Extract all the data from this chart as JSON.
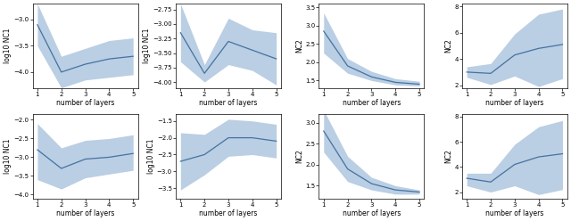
{
  "x": [
    1,
    2,
    3,
    4,
    5
  ],
  "plots": [
    {
      "mean": [
        -3.1,
        -4.0,
        -3.85,
        -3.75,
        -3.7
      ],
      "lower": [
        -3.5,
        -4.3,
        -4.15,
        -4.1,
        -4.05
      ],
      "upper": [
        -2.7,
        -3.7,
        -3.55,
        -3.4,
        -3.35
      ],
      "ylabel": "log10 NC1",
      "ylim": [
        -4.3,
        -2.7
      ]
    },
    {
      "mean": [
        -3.15,
        -3.85,
        -3.3,
        -3.45,
        -3.6
      ],
      "lower": [
        -3.65,
        -4.0,
        -3.7,
        -3.8,
        -4.05
      ],
      "upper": [
        -2.65,
        -3.7,
        -2.9,
        -3.1,
        -3.15
      ],
      "ylabel": "log10 NC1",
      "ylim": [
        -4.1,
        -2.65
      ]
    },
    {
      "mean": [
        2.85,
        1.9,
        1.6,
        1.45,
        1.4
      ],
      "lower": [
        2.25,
        1.7,
        1.5,
        1.38,
        1.35
      ],
      "upper": [
        3.35,
        2.1,
        1.75,
        1.55,
        1.48
      ],
      "ylabel": "NC2",
      "ylim": [
        1.3,
        3.6
      ]
    },
    {
      "mean": [
        3.0,
        2.9,
        4.3,
        4.8,
        5.1
      ],
      "lower": [
        2.6,
        2.05,
        2.7,
        1.9,
        2.5
      ],
      "upper": [
        3.4,
        3.65,
        5.9,
        7.4,
        7.8
      ],
      "ylabel": "NC2",
      "ylim": [
        1.8,
        8.2
      ]
    },
    {
      "mean": [
        -2.8,
        -3.3,
        -3.05,
        -3.0,
        -2.9
      ],
      "lower": [
        -3.6,
        -3.85,
        -3.55,
        -3.45,
        -3.35
      ],
      "upper": [
        -2.1,
        -2.75,
        -2.55,
        -2.5,
        -2.4
      ],
      "ylabel": "log10 NC1",
      "ylim": [
        -4.1,
        -1.85
      ]
    },
    {
      "mean": [
        -2.7,
        -2.5,
        -2.0,
        -2.0,
        -2.1
      ],
      "lower": [
        -3.55,
        -3.1,
        -2.55,
        -2.5,
        -2.6
      ],
      "upper": [
        -1.85,
        -1.9,
        -1.45,
        -1.5,
        -1.6
      ],
      "ylabel": "log10 NC1",
      "ylim": [
        -3.8,
        -1.3
      ]
    },
    {
      "mean": [
        2.8,
        1.9,
        1.55,
        1.4,
        1.35
      ],
      "lower": [
        2.3,
        1.6,
        1.4,
        1.3,
        1.3
      ],
      "upper": [
        3.3,
        2.2,
        1.7,
        1.5,
        1.4
      ],
      "ylabel": "NC2",
      "ylim": [
        1.2,
        3.2
      ]
    },
    {
      "mean": [
        3.1,
        2.8,
        4.2,
        4.8,
        5.05
      ],
      "lower": [
        2.5,
        2.0,
        2.5,
        1.8,
        2.2
      ],
      "upper": [
        3.5,
        3.5,
        5.8,
        7.2,
        7.7
      ],
      "ylabel": "NC2",
      "ylim": [
        1.5,
        8.2
      ]
    }
  ],
  "fill_color": "#aec6e0",
  "line_color": "#4472a0",
  "xlabel": "number of layers",
  "xticks": [
    1,
    2,
    3,
    4,
    5
  ],
  "background_color": "#ffffff",
  "figsize": [
    6.4,
    2.48
  ],
  "dpi": 100,
  "tick_fontsize": 5.0,
  "label_fontsize": 5.5,
  "linewidth": 0.9
}
